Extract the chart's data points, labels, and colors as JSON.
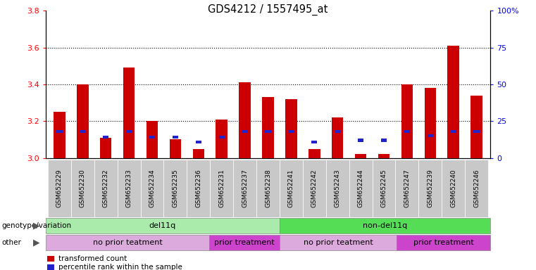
{
  "title": "GDS4212 / 1557495_at",
  "samples": [
    "GSM652229",
    "GSM652230",
    "GSM652232",
    "GSM652233",
    "GSM652234",
    "GSM652235",
    "GSM652236",
    "GSM652231",
    "GSM652237",
    "GSM652238",
    "GSM652241",
    "GSM652242",
    "GSM652243",
    "GSM652244",
    "GSM652245",
    "GSM652247",
    "GSM652239",
    "GSM652240",
    "GSM652246"
  ],
  "red_values": [
    3.25,
    3.4,
    3.11,
    3.49,
    3.2,
    3.1,
    3.05,
    3.21,
    3.41,
    3.33,
    3.32,
    3.05,
    3.22,
    3.02,
    3.02,
    3.4,
    3.38,
    3.61,
    3.34
  ],
  "blue_pct": [
    18,
    18,
    14,
    18,
    14,
    14,
    11,
    14,
    18,
    18,
    18,
    11,
    18,
    12,
    12,
    18,
    15,
    18,
    18
  ],
  "ylim_left": [
    3.0,
    3.8
  ],
  "ylim_right": [
    0,
    100
  ],
  "yticks_left": [
    3.0,
    3.2,
    3.4,
    3.6,
    3.8
  ],
  "yticks_right": [
    0,
    25,
    50,
    75,
    100
  ],
  "ytick_labels_right": [
    "0",
    "25",
    "50",
    "75",
    "100%"
  ],
  "grid_values": [
    3.2,
    3.4,
    3.6
  ],
  "bar_color": "#cc0000",
  "blue_color": "#2222cc",
  "tick_box_color": "#c8c8c8",
  "genotype_groups": [
    {
      "label": "del11q",
      "start": 0,
      "end": 10,
      "color": "#aaeaaa"
    },
    {
      "label": "non-del11q",
      "start": 10,
      "end": 19,
      "color": "#55dd55"
    }
  ],
  "other_groups": [
    {
      "label": "no prior teatment",
      "start": 0,
      "end": 7,
      "color": "#ddaadd"
    },
    {
      "label": "prior treatment",
      "start": 7,
      "end": 10,
      "color": "#cc44cc"
    },
    {
      "label": "no prior teatment",
      "start": 10,
      "end": 15,
      "color": "#ddaadd"
    },
    {
      "label": "prior treatment",
      "start": 15,
      "end": 19,
      "color": "#cc44cc"
    }
  ],
  "legend_items": [
    {
      "label": "transformed count",
      "color": "#cc0000"
    },
    {
      "label": "percentile rank within the sample",
      "color": "#2222cc"
    }
  ],
  "bar_width": 0.5,
  "base": 3.0,
  "fig_width": 7.61,
  "fig_height": 3.84,
  "dpi": 100
}
